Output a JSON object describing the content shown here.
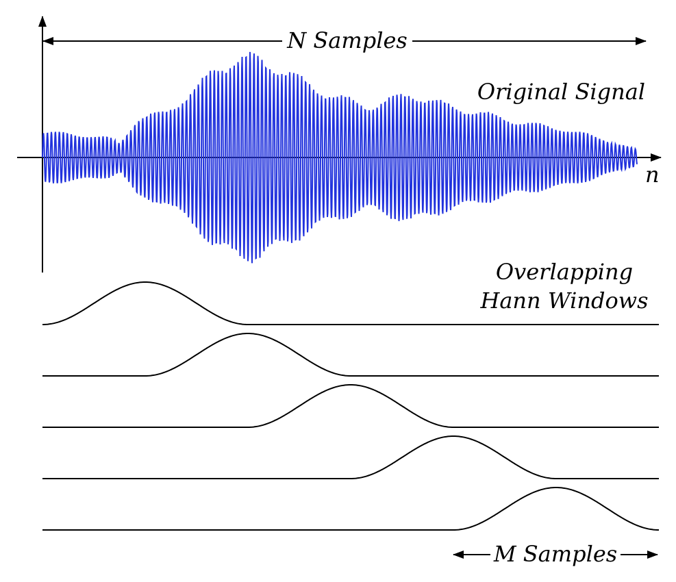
{
  "labels": {
    "n_samples": "N Samples",
    "original_signal": "Original Signal",
    "axis_n": "n",
    "windows_line1": "Overlapping",
    "windows_line2": "Hann Windows",
    "m_samples": "M Samples"
  },
  "colors": {
    "signal": "#2233dd",
    "ink": "#000000"
  },
  "windows": {
    "count": 5,
    "overlap": "50%"
  }
}
